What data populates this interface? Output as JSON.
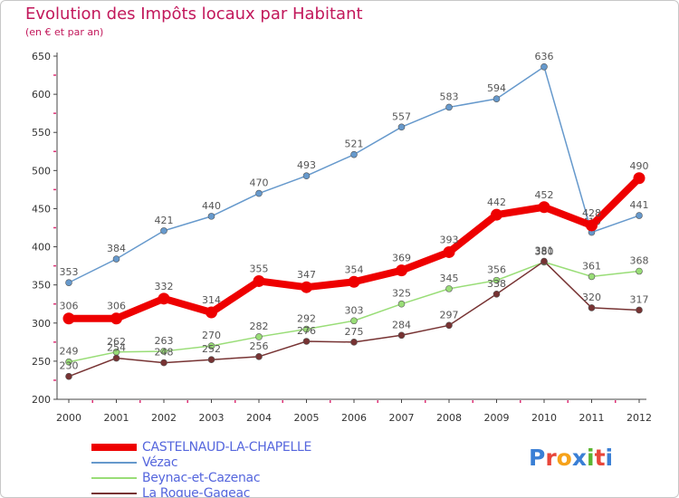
{
  "chart_data": {
    "type": "line",
    "title": "Evolution des Impôts locaux par Habitant",
    "subtitle": "(en € et par an)",
    "x": [
      "2000",
      "2001",
      "2002",
      "2003",
      "2004",
      "2005",
      "2006",
      "2007",
      "2008",
      "2009",
      "2010",
      "2011",
      "2012"
    ],
    "yticks": [
      200,
      250,
      300,
      350,
      400,
      450,
      500,
      550,
      600,
      650
    ],
    "ylim": [
      200,
      650
    ],
    "grid": false,
    "legend_position": "bottom-left",
    "series": [
      {
        "name": "CASTELNAUD-LA-CHAPELLE",
        "color": "#ee0000",
        "values": [
          306,
          306,
          332,
          314,
          355,
          347,
          354,
          369,
          393,
          442,
          452,
          428,
          490
        ]
      },
      {
        "name": "Vézac",
        "color": "#6699cc",
        "values": [
          353,
          384,
          421,
          440,
          470,
          493,
          521,
          557,
          583,
          594,
          636,
          419,
          441
        ]
      },
      {
        "name": "Beynac-et-Cazenac",
        "color": "#99dd77",
        "values": [
          249,
          262,
          263,
          270,
          282,
          292,
          303,
          325,
          345,
          356,
          380,
          361,
          368
        ]
      },
      {
        "name": "La Roque-Gageac",
        "color": "#773333",
        "values": [
          230,
          254,
          248,
          252,
          256,
          276,
          275,
          284,
          297,
          338,
          381,
          320,
          317
        ]
      }
    ]
  },
  "logo": {
    "text": "Proxiti",
    "colors": [
      "#3a7fd5",
      "#e8463a",
      "#f6a21a",
      "#3a7fd5",
      "#5bb531",
      "#e8463a",
      "#3a7fd5"
    ]
  }
}
